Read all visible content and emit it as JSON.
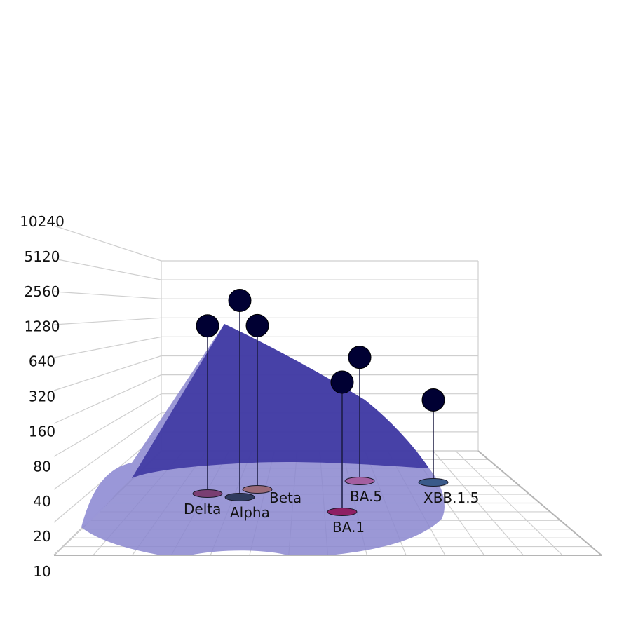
{
  "chart_data": {
    "type": "scatter",
    "subtype": "3d-surface-with-points",
    "title": "",
    "xlabel": "",
    "ylabel": "",
    "zlabel": "",
    "z_scale": "log2",
    "z_ticks": [
      "10",
      "20",
      "40",
      "80",
      "160",
      "320",
      "640",
      "1280",
      "2560",
      "5120",
      "10240"
    ],
    "zlim": [
      10,
      10240
    ],
    "grid": true,
    "surface_color": "#3b34a0",
    "base_color": "#8a86cf",
    "point_color": "#000033",
    "points": [
      {
        "name": "Delta",
        "value": 580,
        "marker_color": "#7a3e72"
      },
      {
        "name": "Alpha",
        "value": 1100,
        "marker_color": "#2f3b5e"
      },
      {
        "name": "Beta",
        "value": 560,
        "marker_color": "#9a6a78"
      },
      {
        "name": "BA.1",
        "value": 190,
        "marker_color": "#8e1f63"
      },
      {
        "name": "BA.5",
        "value": 230,
        "marker_color": "#a45fa0"
      },
      {
        "name": "XBB.1.5",
        "value": 80,
        "marker_color": "#3a5a8a"
      }
    ]
  }
}
